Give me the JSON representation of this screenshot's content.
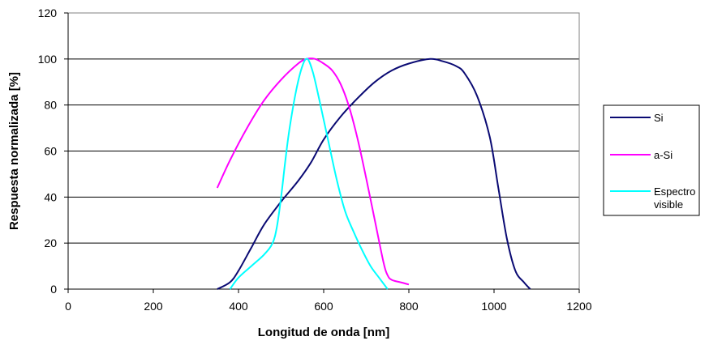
{
  "chart_data": {
    "type": "line",
    "title": "",
    "xlabel": "Longitud de onda [nm]",
    "ylabel": "Respuesta normalizada [%]",
    "xlim": [
      0,
      1200
    ],
    "ylim": [
      0,
      120
    ],
    "xticks": [
      0,
      200,
      400,
      600,
      800,
      1000,
      1200
    ],
    "yticks": [
      0,
      20,
      40,
      60,
      80,
      100,
      120
    ],
    "grid": "horizontal",
    "legend_position": "right",
    "series": [
      {
        "name": "Si",
        "color": "#0a0a73",
        "x": [
          350,
          380,
          400,
          430,
          460,
          500,
          540,
          570,
          600,
          640,
          680,
          720,
          760,
          800,
          850,
          880,
          910,
          930,
          960,
          990,
          1010,
          1030,
          1050,
          1070,
          1085
        ],
        "y": [
          0,
          3,
          8,
          18,
          28,
          38,
          47,
          55,
          65,
          75,
          83,
          90,
          95,
          98,
          100,
          99,
          97,
          94,
          84,
          66,
          44,
          22,
          8,
          3,
          0
        ]
      },
      {
        "name": "a-Si",
        "color": "#ff00ff",
        "x": [
          350,
          380,
          420,
          460,
          500,
          540,
          560,
          580,
          600,
          620,
          640,
          660,
          680,
          700,
          720,
          740,
          750,
          760,
          780,
          800
        ],
        "y": [
          44,
          56,
          70,
          82,
          91,
          98,
          100,
          100,
          98,
          95,
          89,
          79,
          65,
          48,
          30,
          12,
          6,
          4,
          3,
          2
        ]
      },
      {
        "name": "Espectro\nvisible",
        "color": "#00ffff",
        "x": [
          380,
          400,
          430,
          460,
          480,
          490,
          500,
          510,
          520,
          535,
          550,
          562,
          575,
          590,
          610,
          630,
          650,
          670,
          690,
          710,
          730,
          750
        ],
        "y": [
          0,
          5,
          10,
          15,
          20,
          27,
          40,
          56,
          70,
          86,
          97,
          100,
          94,
          82,
          65,
          48,
          34,
          25,
          17,
          10,
          5,
          0
        ]
      }
    ]
  }
}
